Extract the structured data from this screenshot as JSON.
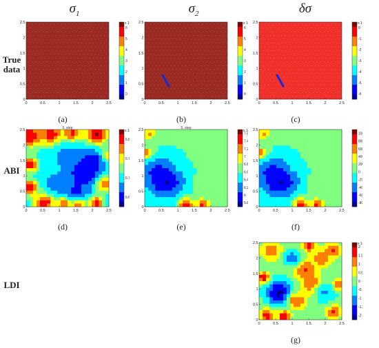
{
  "columns": [
    {
      "label": "σ",
      "sub": "1"
    },
    {
      "label": "σ",
      "sub": "2"
    },
    {
      "label": "δσ",
      "sub": ""
    }
  ],
  "rows": [
    {
      "label_line1": "True",
      "label_line2": "data"
    },
    {
      "label_line1": "ABI",
      "label_line2": ""
    },
    {
      "label_line1": "LDI",
      "label_line2": ""
    }
  ],
  "axis_ticks": {
    "x": [
      "0",
      "0.5",
      "1",
      "1.5",
      "2",
      "2.5"
    ],
    "y": [
      "0",
      "0.5",
      "1",
      "1.5",
      "2",
      "2.5"
    ],
    "x_alt": [
      "0",
      "0.5",
      "1",
      "1.5",
      "2",
      "2.5"
    ]
  },
  "panels": {
    "a": {
      "caption": "(a)",
      "title": "",
      "exponent": "x 10⁴",
      "cb_ticks": [
        "0",
        "1",
        "2",
        "3",
        "4",
        "5",
        "6"
      ],
      "map": "uniform-dark"
    },
    "b": {
      "caption": "(b)",
      "title": "",
      "exponent": "x 10⁴",
      "cb_ticks": [
        "0",
        "1",
        "2",
        "3",
        "4",
        "5",
        "6"
      ],
      "map": "uniform-dark-with-anomaly"
    },
    "c": {
      "caption": "(c)",
      "title": "",
      "exponent": "x 10⁴",
      "cb_ticks": [
        "-6",
        "-5",
        "-4",
        "-3",
        "-2",
        "-1",
        "0"
      ],
      "map": "uniform-red-with-anomaly"
    },
    "d": {
      "caption": "(d)",
      "title": "5. step",
      "exponent": "x 10⁴",
      "cb_ticks": [
        "6.65",
        "6.7",
        "6.75",
        "6.8"
      ],
      "map": "abi-sigma1"
    },
    "e": {
      "caption": "(e)",
      "title": "5. step",
      "exponent": "x 10⁴",
      "cb_ticks": [
        "5.8",
        "6",
        "6.2",
        "6.4",
        "6.6",
        "6.8",
        "7",
        "7.2",
        "7.4",
        "7.6"
      ],
      "map": "abi-sigma2"
    },
    "f": {
      "caption": "(f)",
      "title": "",
      "exponent": "",
      "cb_ticks": [
        "-8000",
        "-6000",
        "-4000",
        "-2000",
        "0",
        "2000",
        "4000",
        "6000",
        "8000",
        "10000"
      ],
      "map": "abi-delta"
    },
    "g": {
      "caption": "(g)",
      "title": "",
      "exponent": "x 10⁴",
      "cb_ticks": [
        "-2",
        "-1.5",
        "-1",
        "-0.5",
        "0",
        "0.5",
        "1",
        "1.5",
        "2"
      ],
      "map": "ldi-delta"
    }
  },
  "colors": {
    "jet": [
      "#00008f",
      "#0000ff",
      "#0080ff",
      "#00ffff",
      "#80ff80",
      "#ffff00",
      "#ff8000",
      "#ff0000",
      "#800000"
    ],
    "true_dark": "#9a2a22",
    "true_red": "#f0302a",
    "anomaly": "#1a2ad0"
  }
}
